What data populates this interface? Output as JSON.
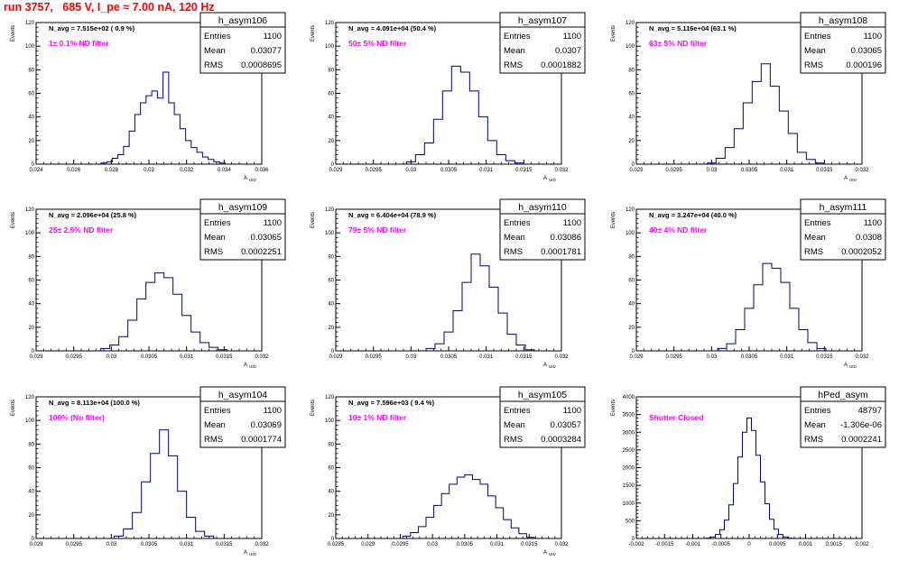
{
  "header": {
    "run_title": "run 3757,   685 V, I_pe ≈ 7.00 nA, 120 Hz"
  },
  "stat_labels": {
    "entries": "Entries",
    "mean": "Mean",
    "rms": "RMS"
  },
  "colors": {
    "histogram": "#000080",
    "label_magenta": "#ff00ff",
    "title_red": "#ff0000",
    "frame": "#000000"
  },
  "chart_data": [
    {
      "type": "histogram",
      "name": "h_asym106",
      "navg": "N_avg = 7.515e+02 ( 0.9 %)",
      "filter": "1± 0.1% ND filter",
      "entries": "1100",
      "mean": "0.03077",
      "rms": "0.0008695",
      "ylabel": "Events",
      "xlabel": "A_UID",
      "xlim": [
        0.024,
        0.036
      ],
      "ylim": [
        0,
        120
      ],
      "xticks": [
        "0.024",
        "0.026",
        "0.028",
        "0.03",
        "0.032",
        "0.034",
        "0.036"
      ],
      "yticks": [
        "0",
        "20",
        "40",
        "60",
        "80",
        "100",
        "120"
      ],
      "x": [
        0.0276,
        0.0279,
        0.0282,
        0.0285,
        0.0288,
        0.0291,
        0.0294,
        0.0297,
        0.03,
        0.0303,
        0.0306,
        0.0309,
        0.0312,
        0.0315,
        0.0318,
        0.0321,
        0.0324,
        0.0327,
        0.033,
        0.0333,
        0.0336,
        0.0339
      ],
      "values": [
        1,
        2,
        5,
        8,
        15,
        28,
        42,
        52,
        58,
        62,
        56,
        78,
        52,
        42,
        30,
        20,
        14,
        10,
        6,
        4,
        2,
        1
      ]
    },
    {
      "type": "histogram",
      "name": "h_asym107",
      "navg": "N_avg = 4.091e+04 (50.4 %)",
      "filter": "50± 5% ND filter",
      "entries": "1100",
      "mean": "0.0307",
      "rms": "0.0001882",
      "ylabel": "Events",
      "xlabel": "A_UID",
      "xlim": [
        0.029,
        0.032
      ],
      "ylim": [
        0,
        120
      ],
      "xticks": [
        "0.029",
        "0.0295",
        "0.03",
        "0.0305",
        "0.031",
        "0.0315",
        "0.032"
      ],
      "yticks": [
        "0",
        "20",
        "40",
        "60",
        "80",
        "100",
        "120"
      ],
      "x": [
        0.03,
        0.03012,
        0.03024,
        0.03036,
        0.03048,
        0.0306,
        0.03072,
        0.03084,
        0.03096,
        0.03108,
        0.0312,
        0.03132,
        0.03144
      ],
      "values": [
        2,
        8,
        18,
        38,
        62,
        83,
        78,
        62,
        40,
        20,
        8,
        3,
        1
      ]
    },
    {
      "type": "histogram",
      "name": "h_asym108",
      "navg": "N_avg = 5.116e+04 (63.1 %)",
      "filter": "63± 5% ND filter",
      "entries": "1100",
      "mean": "0.03065",
      "rms": "0.000196",
      "ylabel": "Events",
      "xlabel": "A_UID",
      "xlim": [
        0.029,
        0.032
      ],
      "ylim": [
        0,
        120
      ],
      "xticks": [
        "0.029",
        "0.0295",
        "0.03",
        "0.0305",
        "0.031",
        "0.0315",
        "0.032"
      ],
      "yticks": [
        "0",
        "20",
        "40",
        "60",
        "80",
        "100",
        "120"
      ],
      "x": [
        0.03,
        0.03012,
        0.03024,
        0.03036,
        0.03048,
        0.0306,
        0.03072,
        0.03084,
        0.03096,
        0.03108,
        0.0312,
        0.03132,
        0.03144
      ],
      "values": [
        1,
        5,
        14,
        30,
        52,
        70,
        85,
        66,
        45,
        26,
        10,
        4,
        1
      ]
    },
    {
      "type": "histogram",
      "name": "h_asym109",
      "navg": "N_avg = 2.096e+04 (25.8 %)",
      "filter": "25± 2.5% ND filter",
      "entries": "1100",
      "mean": "0.03065",
      "rms": "0.0002251",
      "ylabel": "Events",
      "xlabel": "A_UID",
      "xlim": [
        0.029,
        0.032
      ],
      "ylim": [
        0,
        120
      ],
      "xticks": [
        "0.029",
        "0.0295",
        "0.03",
        "0.0305",
        "0.031",
        "0.0315",
        "0.032"
      ],
      "yticks": [
        "0",
        "20",
        "40",
        "60",
        "80",
        "100",
        "120"
      ],
      "x": [
        0.02992,
        0.03004,
        0.03016,
        0.03028,
        0.0304,
        0.03052,
        0.03064,
        0.03076,
        0.03088,
        0.031,
        0.03112,
        0.03124,
        0.03136,
        0.03148
      ],
      "values": [
        2,
        5,
        12,
        26,
        44,
        58,
        66,
        62,
        48,
        30,
        16,
        7,
        3,
        1
      ]
    },
    {
      "type": "histogram",
      "name": "h_asym110",
      "navg": "N_avg = 6.404e+04 (78.9 %)",
      "filter": "79± 5% ND filter",
      "entries": "1100",
      "mean": "0.03086",
      "rms": "0.0001781",
      "ylabel": "Events",
      "xlabel": "A_UID",
      "xlim": [
        0.029,
        0.032
      ],
      "ylim": [
        0,
        120
      ],
      "xticks": [
        "0.029",
        "0.0295",
        "0.03",
        "0.0305",
        "0.031",
        "0.0315",
        "0.032"
      ],
      "yticks": [
        "0",
        "20",
        "40",
        "60",
        "80",
        "100",
        "120"
      ],
      "x": [
        0.03026,
        0.03038,
        0.0305,
        0.03062,
        0.03074,
        0.03086,
        0.03098,
        0.0311,
        0.03122,
        0.03134,
        0.03146,
        0.03158
      ],
      "values": [
        2,
        6,
        16,
        34,
        58,
        82,
        72,
        54,
        32,
        14,
        5,
        1
      ]
    },
    {
      "type": "histogram",
      "name": "h_asym111",
      "navg": "N_avg = 3.247e+04 (40.0 %)",
      "filter": "40± 4% ND filter",
      "entries": "1100",
      "mean": "0.0308",
      "rms": "0.0002052",
      "ylabel": "Events",
      "xlabel": "A_UID",
      "xlim": [
        0.029,
        0.032
      ],
      "ylim": [
        0,
        120
      ],
      "xticks": [
        "0.029",
        "0.0295",
        "0.03",
        "0.0305",
        "0.031",
        "0.0315",
        "0.032"
      ],
      "yticks": [
        "0",
        "20",
        "40",
        "60",
        "80",
        "100",
        "120"
      ],
      "x": [
        0.03014,
        0.03026,
        0.03038,
        0.0305,
        0.03062,
        0.03074,
        0.03086,
        0.03098,
        0.0311,
        0.03122,
        0.03134,
        0.03146
      ],
      "values": [
        2,
        6,
        18,
        36,
        56,
        74,
        70,
        58,
        36,
        18,
        7,
        2
      ]
    },
    {
      "type": "histogram",
      "name": "h_asym104",
      "navg": "N_avg = 8.113e+04 (100.0 %)",
      "filter": "100% (No filter)",
      "entries": "1100",
      "mean": "0.03069",
      "rms": "0.0001774",
      "ylabel": "Events",
      "xlabel": "A_UID",
      "xlim": [
        0.029,
        0.032
      ],
      "ylim": [
        0,
        120
      ],
      "xticks": [
        "0.029",
        "0.0295",
        "0.03",
        "0.0305",
        "0.031",
        "0.0315",
        "0.032"
      ],
      "yticks": [
        "0",
        "20",
        "40",
        "60",
        "80",
        "100",
        "120"
      ],
      "x": [
        0.0301,
        0.03022,
        0.03034,
        0.03046,
        0.03058,
        0.0307,
        0.03082,
        0.03094,
        0.03106,
        0.03118,
        0.0313
      ],
      "values": [
        2,
        8,
        22,
        48,
        72,
        92,
        70,
        40,
        18,
        6,
        2
      ]
    },
    {
      "type": "histogram",
      "name": "h_asym105",
      "navg": "N_avg = 7.596e+03 ( 9.4 %)",
      "filter": "10± 1% ND filter",
      "entries": "1100",
      "mean": "0.03057",
      "rms": "0.0003284",
      "ylabel": "Events",
      "xlabel": "A_UID",
      "xlim": [
        0.0285,
        0.032
      ],
      "ylim": [
        0,
        120
      ],
      "xticks": [
        "0.0285",
        "0.029",
        "0.0295",
        "0.03",
        "0.0305",
        "0.031",
        "0.0315",
        "0.032"
      ],
      "yticks": [
        "0",
        "20",
        "40",
        "60",
        "80",
        "100",
        "120"
      ],
      "x": [
        0.0296,
        0.02972,
        0.02984,
        0.02996,
        0.03008,
        0.0302,
        0.03032,
        0.03044,
        0.03056,
        0.03068,
        0.0308,
        0.03092,
        0.03104,
        0.03116,
        0.03128,
        0.0314,
        0.03152
      ],
      "values": [
        2,
        5,
        10,
        18,
        28,
        38,
        46,
        52,
        54,
        50,
        46,
        36,
        26,
        16,
        9,
        4,
        1
      ]
    },
    {
      "type": "histogram",
      "name": "hPed_asym",
      "navg": "",
      "filter": "Shutter Closed",
      "entries": "48797",
      "mean": "-1.306e-06",
      "rms": "0.0002241",
      "ylabel": "Events",
      "xlabel": "",
      "xlim": [
        -0.002,
        0.002
      ],
      "ylim": [
        0,
        4000
      ],
      "xticks": [
        "-0.002",
        "-0.0015",
        "-0.001",
        "-0.0005",
        "0",
        "0.0005",
        "0.001",
        "0.0015",
        "0.002"
      ],
      "yticks": [
        "0",
        "500",
        "1000",
        "1500",
        "2000",
        "2500",
        "3000",
        "3500",
        "4000"
      ],
      "x": [
        -0.00072,
        -0.00064,
        -0.00056,
        -0.00048,
        -0.0004,
        -0.00032,
        -0.00024,
        -0.00016,
        -8e-05,
        0,
        8e-05,
        0.00016,
        0.00024,
        0.00032,
        0.0004,
        0.00048,
        0.00056,
        0.00064,
        0.00072
      ],
      "values": [
        10,
        40,
        110,
        250,
        520,
        950,
        1550,
        2300,
        3000,
        3400,
        3050,
        2350,
        1600,
        980,
        540,
        260,
        110,
        40,
        10
      ]
    }
  ]
}
